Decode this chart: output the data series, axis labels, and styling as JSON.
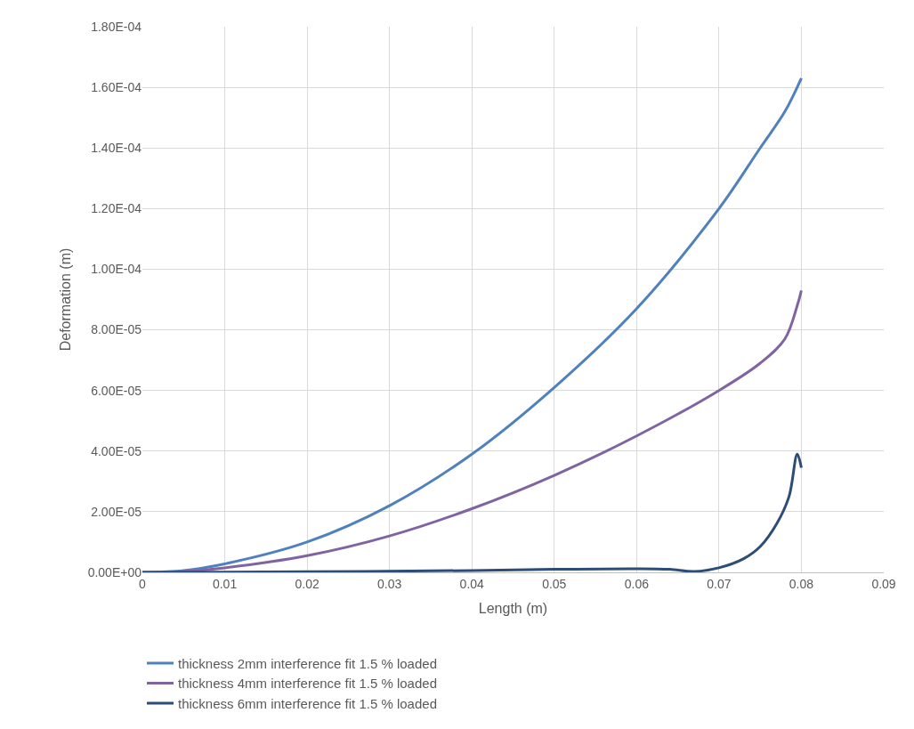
{
  "chart_data": {
    "type": "line",
    "xlabel": "Length (m)",
    "ylabel": "Deformation (m)",
    "xlim": [
      0,
      0.09
    ],
    "xticks": [
      0,
      0.01,
      0.02,
      0.03,
      0.04,
      0.05,
      0.06,
      0.07,
      0.08,
      0.09
    ],
    "ylim": [
      0,
      0.00018
    ],
    "yticks": [
      {
        "value": 0,
        "label": "0.00E+00"
      },
      {
        "value": 2e-05,
        "label": "2.00E-05"
      },
      {
        "value": 4e-05,
        "label": "4.00E-05"
      },
      {
        "value": 6e-05,
        "label": "6.00E-05"
      },
      {
        "value": 8e-05,
        "label": "8.00E-05"
      },
      {
        "value": 0.0001,
        "label": "1.00E-04"
      },
      {
        "value": 0.00012,
        "label": "1.20E-04"
      },
      {
        "value": 0.00014,
        "label": "1.40E-04"
      },
      {
        "value": 0.00016,
        "label": "1.60E-04"
      },
      {
        "value": 0.00018,
        "label": "1.80E-04"
      }
    ],
    "grid": true,
    "legend": "bottom",
    "marker": "none",
    "line_style": "solid",
    "series": [
      {
        "name": "thickness 2mm interference fit 1.5 % loaded",
        "color": "#4f81bd",
        "x": [
          0,
          0.005,
          0.01,
          0.02,
          0.03,
          0.04,
          0.05,
          0.06,
          0.07,
          0.075,
          0.078,
          0.08
        ],
        "values": [
          0,
          6e-07,
          2.8e-06,
          1e-05,
          2.2e-05,
          3.9e-05,
          6.1e-05,
          8.7e-05,
          0.00012,
          0.00014,
          0.000152,
          0.000163
        ]
      },
      {
        "name": "thickness 4mm interference fit 1.5 % loaded",
        "color": "#8064a2",
        "x": [
          0,
          0.005,
          0.01,
          0.02,
          0.03,
          0.04,
          0.05,
          0.06,
          0.07,
          0.075,
          0.078,
          0.0795,
          0.08
        ],
        "values": [
          0,
          3e-07,
          1.5e-06,
          5.5e-06,
          1.2e-05,
          2.1e-05,
          3.2e-05,
          4.5e-05,
          6e-05,
          6.9e-05,
          7.7e-05,
          8.8e-05,
          9.3e-05
        ]
      },
      {
        "name": "thickness 6mm interference fit 1.5 % loaded",
        "color": "#2c4d75",
        "x": [
          0,
          0.02,
          0.04,
          0.05,
          0.06,
          0.064,
          0.067,
          0.07,
          0.073,
          0.075,
          0.077,
          0.0785,
          0.0795,
          0.08
        ],
        "values": [
          0,
          2e-07,
          6e-07,
          1e-06,
          1.2e-06,
          1e-06,
          3e-07,
          1.5e-06,
          4.5e-06,
          8.5e-06,
          1.6e-05,
          2.5e-05,
          3.9e-05,
          3.45e-05
        ]
      }
    ]
  }
}
